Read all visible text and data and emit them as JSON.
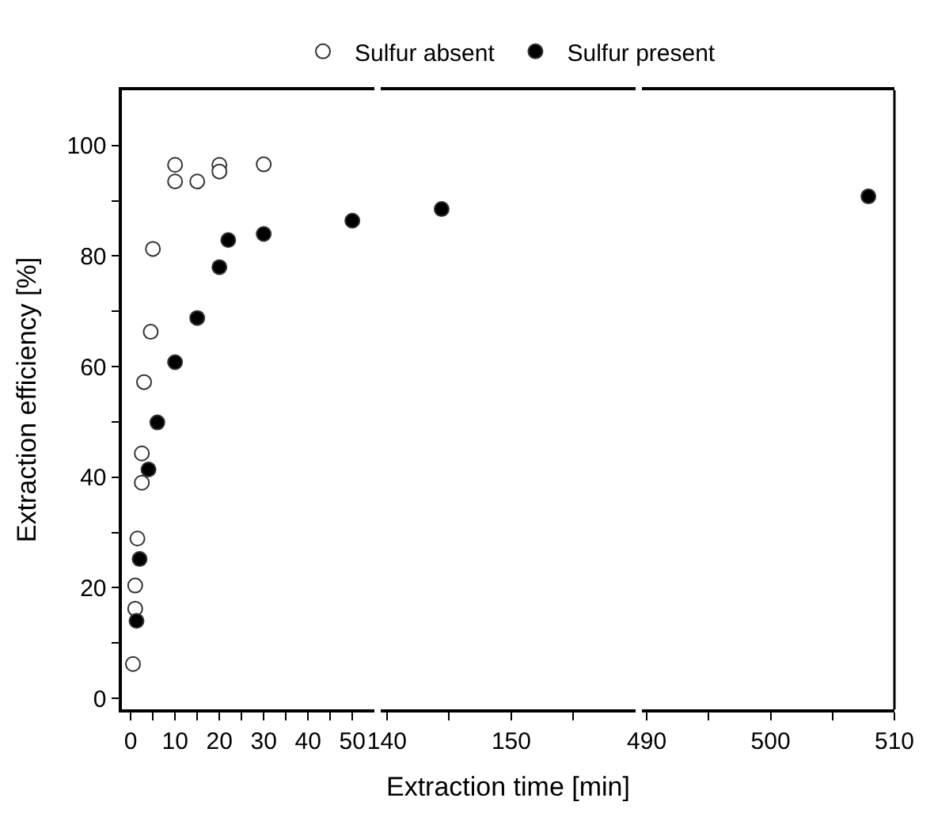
{
  "chart_data": [
    {
      "type": "scatter",
      "ylabel": "Extraction efficiency [%]",
      "legend": "top",
      "marker": "circle",
      "xlim": [
        -2,
        55
      ],
      "xticks": [
        0,
        {
          "value": 5,
          "label": null
        },
        10,
        {
          "value": 15,
          "label": null
        },
        20,
        {
          "value": 25,
          "label": null
        },
        30,
        {
          "value": 35,
          "label": null
        },
        40,
        {
          "value": 45,
          "label": null
        },
        50
      ],
      "ylim": [
        -2,
        110
      ],
      "yticks": [
        0,
        {
          "value": 10,
          "label": null
        },
        20,
        {
          "value": 30,
          "label": null
        },
        40,
        {
          "value": 50,
          "label": null
        },
        60,
        {
          "value": 70,
          "label": null
        },
        80,
        {
          "value": 90,
          "label": null
        },
        100
      ],
      "series": [
        {
          "name": "Sulfur absent",
          "color": "#ffffff",
          "x": [
            0.5,
            1,
            1,
            1.5,
            2.5,
            2.5,
            3,
            4.5,
            5,
            10,
            10,
            15,
            20,
            20,
            30
          ],
          "values": [
            6.2,
            16.2,
            20.4,
            28.9,
            39.0,
            44.3,
            57.2,
            66.3,
            81.3,
            93.5,
            96.5,
            93.5,
            96.5,
            95.3,
            96.6
          ]
        },
        {
          "name": "Sulfur present",
          "color": "#000000",
          "x": [
            1.3,
            2,
            4,
            6,
            10,
            15,
            20,
            22,
            30,
            50
          ],
          "values": [
            14.0,
            25.2,
            41.4,
            49.9,
            60.8,
            68.8,
            78.0,
            82.9,
            84.0,
            86.4
          ]
        }
      ]
    },
    {
      "type": "scatter",
      "xlabel": "Extraction time [min]",
      "marker": "circle",
      "tick_labels": "x",
      "xlim": [
        139.5,
        160
      ],
      "xticks": [
        140,
        {
          "value": 145,
          "label": null
        },
        150,
        {
          "value": 155,
          "label": null
        }
      ],
      "ylim": [
        -2,
        110
      ],
      "series": [
        {
          "color": "#000000",
          "x": [
            144.4
          ],
          "values": [
            88.5
          ]
        }
      ]
    },
    {
      "type": "scatter",
      "marker": "circle",
      "tick_labels": "x",
      "xlim": [
        489.6,
        510
      ],
      "xticks": [
        490,
        {
          "value": 495,
          "label": null
        },
        500,
        {
          "value": 505,
          "label": null
        },
        510
      ],
      "ylim": [
        -2,
        110
      ],
      "series": [
        {
          "color": "#000000",
          "x": [
            507.9
          ],
          "values": [
            90.8
          ]
        }
      ]
    }
  ]
}
